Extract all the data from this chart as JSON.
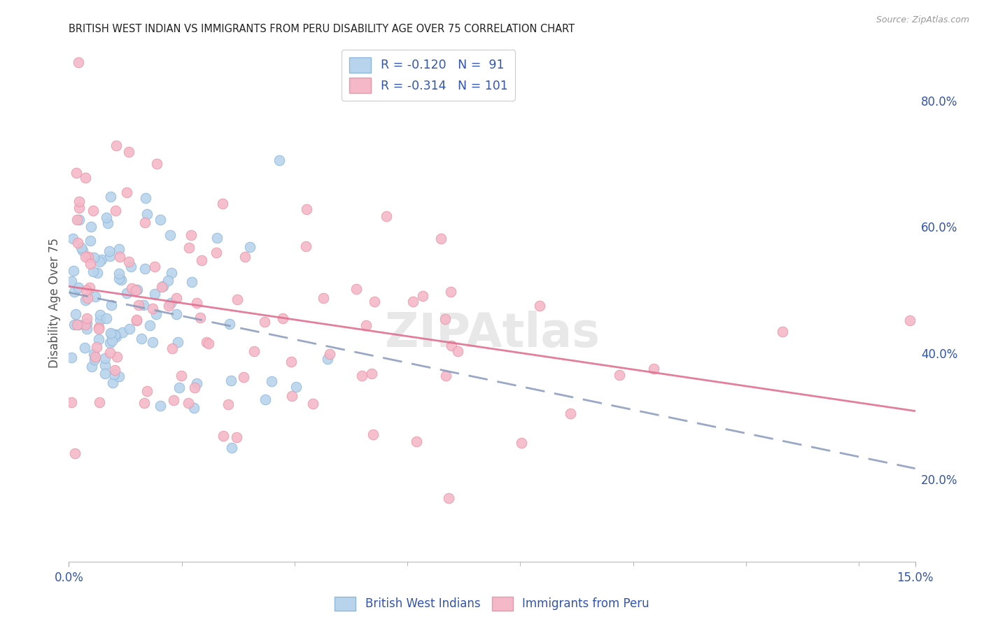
{
  "title": "BRITISH WEST INDIAN VS IMMIGRANTS FROM PERU DISABILITY AGE OVER 75 CORRELATION CHART",
  "source": "Source: ZipAtlas.com",
  "ylabel": "Disability Age Over 75",
  "ylabel_right_ticks": [
    "20.0%",
    "40.0%",
    "60.0%",
    "80.0%"
  ],
  "ylabel_right_vals": [
    0.2,
    0.4,
    0.6,
    0.8
  ],
  "xmin": 0.0,
  "xmax": 0.15,
  "ymin": 0.07,
  "ymax": 0.89,
  "blue_color": "#b8d4ec",
  "blue_edge": "#90b8dc",
  "pink_color": "#f5b8c8",
  "pink_edge": "#e898a8",
  "trend_blue_color": "#8899bb",
  "trend_pink_color": "#e07090",
  "legend_label_color": "#3355aa",
  "grid_color": "#dddddd",
  "title_color": "#222222",
  "source_color": "#999999",
  "watermark_color": "#e8e8e8"
}
